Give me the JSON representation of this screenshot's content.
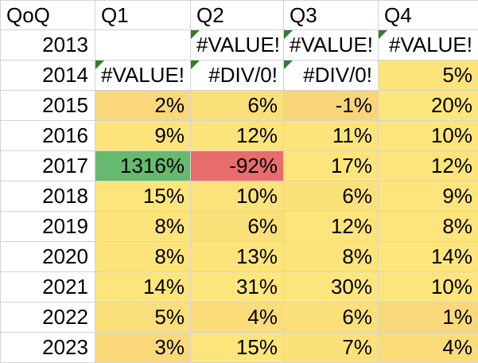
{
  "colors": {
    "gridline": "#d4d4d4",
    "scale_yellow_bright": "#fde47a",
    "scale_yellow_light": "#fcea8a",
    "scale_orange": "#f9d77a",
    "scale_green": "#66b96f",
    "scale_red": "#e86c6c",
    "error_marker": "#2e7d32"
  },
  "sheet": {
    "headers": [
      "QoQ",
      "Q1",
      "Q2",
      "Q3",
      "Q4"
    ],
    "rows": [
      {
        "year": "2013",
        "cells": [
          {
            "text": "",
            "bg": "",
            "error": false
          },
          {
            "text": "#VALUE!",
            "bg": "",
            "error": true
          },
          {
            "text": "#VALUE!",
            "bg": "",
            "error": true
          },
          {
            "text": "#VALUE!",
            "bg": "",
            "error": true
          }
        ]
      },
      {
        "year": "2014",
        "cells": [
          {
            "text": "#VALUE!",
            "bg": "",
            "error": true
          },
          {
            "text": "#DIV/0!",
            "bg": "",
            "error": true
          },
          {
            "text": "#DIV/0!",
            "bg": "",
            "error": true
          },
          {
            "text": "5%",
            "bg": "#fde47a",
            "error": false
          }
        ]
      },
      {
        "year": "2015",
        "cells": [
          {
            "text": "2%",
            "bg": "#f9d77a",
            "error": false
          },
          {
            "text": "6%",
            "bg": "#fbe07a",
            "error": false
          },
          {
            "text": "-1%",
            "bg": "#f8d579",
            "error": false
          },
          {
            "text": "20%",
            "bg": "#fde67c",
            "error": false
          }
        ]
      },
      {
        "year": "2016",
        "cells": [
          {
            "text": "9%",
            "bg": "#fde47a",
            "error": false
          },
          {
            "text": "12%",
            "bg": "#fce37a",
            "error": false
          },
          {
            "text": "11%",
            "bg": "#fce47b",
            "error": false
          },
          {
            "text": "10%",
            "bg": "#fde57b",
            "error": false
          }
        ]
      },
      {
        "year": "2017",
        "cells": [
          {
            "text": "1316%",
            "bg": "#66b96f",
            "error": false
          },
          {
            "text": "-92%",
            "bg": "#e86c6c",
            "error": false
          },
          {
            "text": "17%",
            "bg": "#fde57c",
            "error": false
          },
          {
            "text": "12%",
            "bg": "#fde47b",
            "error": false
          }
        ]
      },
      {
        "year": "2018",
        "cells": [
          {
            "text": "15%",
            "bg": "#fde57b",
            "error": false
          },
          {
            "text": "10%",
            "bg": "#fce27a",
            "error": false
          },
          {
            "text": "6%",
            "bg": "#fbe17a",
            "error": false
          },
          {
            "text": "9%",
            "bg": "#fde57b",
            "error": false
          }
        ]
      },
      {
        "year": "2019",
        "cells": [
          {
            "text": "8%",
            "bg": "#fde47a",
            "error": false
          },
          {
            "text": "6%",
            "bg": "#fbe07a",
            "error": false
          },
          {
            "text": "12%",
            "bg": "#fde57b",
            "error": false
          },
          {
            "text": "8%",
            "bg": "#fde47b",
            "error": false
          }
        ]
      },
      {
        "year": "2020",
        "cells": [
          {
            "text": "8%",
            "bg": "#fde47a",
            "error": false
          },
          {
            "text": "13%",
            "bg": "#fce47b",
            "error": false
          },
          {
            "text": "8%",
            "bg": "#fce37a",
            "error": false
          },
          {
            "text": "14%",
            "bg": "#fde57c",
            "error": false
          }
        ]
      },
      {
        "year": "2021",
        "cells": [
          {
            "text": "14%",
            "bg": "#fde57b",
            "error": false
          },
          {
            "text": "31%",
            "bg": "#fde67c",
            "error": false
          },
          {
            "text": "30%",
            "bg": "#fde77d",
            "error": false
          },
          {
            "text": "10%",
            "bg": "#fde57b",
            "error": false
          }
        ]
      },
      {
        "year": "2022",
        "cells": [
          {
            "text": "5%",
            "bg": "#fbdf7a",
            "error": false
          },
          {
            "text": "4%",
            "bg": "#fadc79",
            "error": false
          },
          {
            "text": "6%",
            "bg": "#fbe07a",
            "error": false
          },
          {
            "text": "1%",
            "bg": "#f9d97a",
            "error": false
          }
        ]
      },
      {
        "year": "2023",
        "cells": [
          {
            "text": "3%",
            "bg": "#f9d97a",
            "error": false
          },
          {
            "text": "15%",
            "bg": "#fde57c",
            "error": false
          },
          {
            "text": "7%",
            "bg": "#fce17a",
            "error": false
          },
          {
            "text": "4%",
            "bg": "#fadc79",
            "error": false
          }
        ]
      }
    ]
  }
}
